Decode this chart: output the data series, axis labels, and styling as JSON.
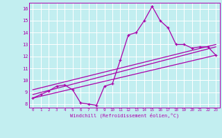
{
  "xlabel": "Windchill (Refroidissement éolien,°C)",
  "background_color": "#c2eef0",
  "grid_color": "#ffffff",
  "line_color": "#aa00aa",
  "xlim": [
    -0.5,
    23.5
  ],
  "ylim": [
    7.7,
    16.5
  ],
  "yticks": [
    8,
    9,
    10,
    11,
    12,
    13,
    14,
    15,
    16
  ],
  "xticks": [
    0,
    1,
    2,
    3,
    4,
    5,
    6,
    7,
    8,
    9,
    10,
    11,
    12,
    13,
    14,
    15,
    16,
    17,
    18,
    19,
    20,
    21,
    22,
    23
  ],
  "line1_x": [
    0,
    1,
    2,
    3,
    4,
    5,
    6,
    7,
    8,
    9,
    10,
    11,
    12,
    13,
    14,
    15,
    16,
    17,
    18,
    19,
    20,
    21,
    22,
    23
  ],
  "line1_y": [
    8.5,
    8.8,
    9.1,
    9.5,
    9.6,
    9.2,
    8.1,
    8.0,
    7.9,
    9.5,
    9.7,
    11.7,
    13.8,
    14.0,
    15.0,
    16.2,
    15.0,
    14.4,
    13.0,
    13.0,
    12.7,
    12.8,
    12.8,
    12.1
  ],
  "line2_x": [
    0,
    23
  ],
  "line2_y": [
    8.5,
    12.1
  ],
  "line3_x": [
    0,
    23
  ],
  "line3_y": [
    8.8,
    12.8
  ],
  "line4_x": [
    0,
    23
  ],
  "line4_y": [
    9.2,
    13.0
  ],
  "linewidth": 0.9
}
